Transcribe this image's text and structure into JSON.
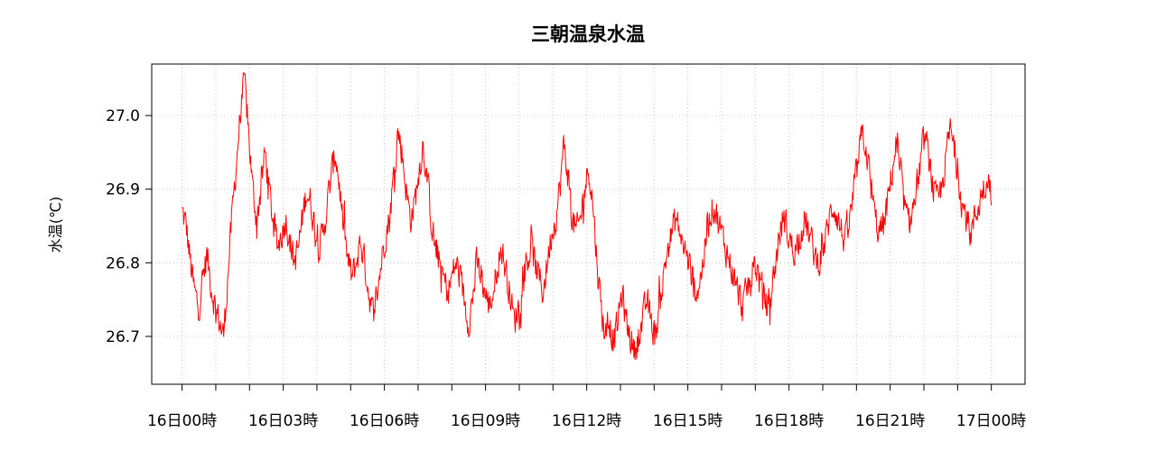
{
  "chart_data": {
    "type": "line",
    "title": "三朝温泉水温",
    "xlabel": "",
    "ylabel": "水温(℃)",
    "ylim": [
      26.635,
      27.07
    ],
    "y_ticks": [
      "26.7",
      "26.8",
      "26.9",
      "27.0"
    ],
    "x_tick_labels": [
      "16日00時",
      "16日03時",
      "16日06時",
      "16日09時",
      "16日12時",
      "16日15時",
      "16日18時",
      "16日21時",
      "17日00時"
    ],
    "x_range_hours": [
      -0.9,
      25.0
    ],
    "grid": true,
    "colors": {
      "series": "#ff0000",
      "grid": "#c8c8c8",
      "axis": "#000000"
    },
    "series": [
      {
        "x_step_hours": 0.0166667,
        "values": [
          26.87,
          26.85,
          26.8,
          26.76,
          26.74,
          26.78,
          26.81,
          26.77,
          26.74,
          26.72,
          26.7,
          26.78,
          26.86,
          26.93,
          27.0,
          27.05,
          26.98,
          26.9,
          26.86,
          26.9,
          26.95,
          26.9,
          26.85,
          26.82,
          26.84,
          26.86,
          26.83,
          26.8,
          26.82,
          26.86,
          26.9,
          26.88,
          26.85,
          26.82,
          26.84,
          26.88,
          26.92,
          26.95,
          26.9,
          26.84,
          26.8,
          26.78,
          26.8,
          26.83,
          26.8,
          26.76,
          26.73,
          26.76,
          26.8,
          26.84,
          26.86,
          26.92,
          26.98,
          26.95,
          26.9,
          26.86,
          26.88,
          26.92,
          26.96,
          26.92,
          26.86,
          26.82,
          26.8,
          26.78,
          26.76,
          26.78,
          26.8,
          26.78,
          26.75,
          26.72,
          26.75,
          26.8,
          26.78,
          26.76,
          26.74,
          26.76,
          26.8,
          26.82,
          26.79,
          26.76,
          26.72,
          26.74,
          26.77,
          26.8,
          26.82,
          26.8,
          26.78,
          26.76,
          26.8,
          26.84,
          26.86,
          26.9,
          26.96,
          26.92,
          26.86,
          26.84,
          26.86,
          26.9,
          26.93,
          26.88,
          26.8,
          26.74,
          26.7,
          26.72,
          26.69,
          26.72,
          26.76,
          26.72,
          26.7,
          26.68,
          26.7,
          26.72,
          26.75,
          26.72,
          26.7,
          26.74,
          26.78,
          26.82,
          26.84,
          26.86,
          26.84,
          26.82,
          26.8,
          26.78,
          26.76,
          26.78,
          26.82,
          26.86,
          26.88,
          26.86,
          26.84,
          26.82,
          26.8,
          26.78,
          26.76,
          26.74,
          26.76,
          26.78,
          26.8,
          26.78,
          26.76,
          26.74,
          26.76,
          26.8,
          26.84,
          26.86,
          26.84,
          26.82,
          26.82,
          26.84,
          26.86,
          26.84,
          26.82,
          26.8,
          26.81,
          26.83,
          26.86,
          26.88,
          26.86,
          26.84,
          26.83,
          26.86,
          26.9,
          26.94,
          26.98,
          26.95,
          26.9,
          26.86,
          26.84,
          26.85,
          26.88,
          26.92,
          26.96,
          26.92,
          26.88,
          26.85,
          26.87,
          26.9,
          26.94,
          26.97,
          26.94,
          26.9,
          26.88,
          26.9,
          26.94,
          26.98,
          26.96,
          26.92,
          26.88,
          26.86,
          26.84,
          26.86,
          26.88,
          26.9,
          26.92,
          26.9
        ]
      }
    ]
  }
}
